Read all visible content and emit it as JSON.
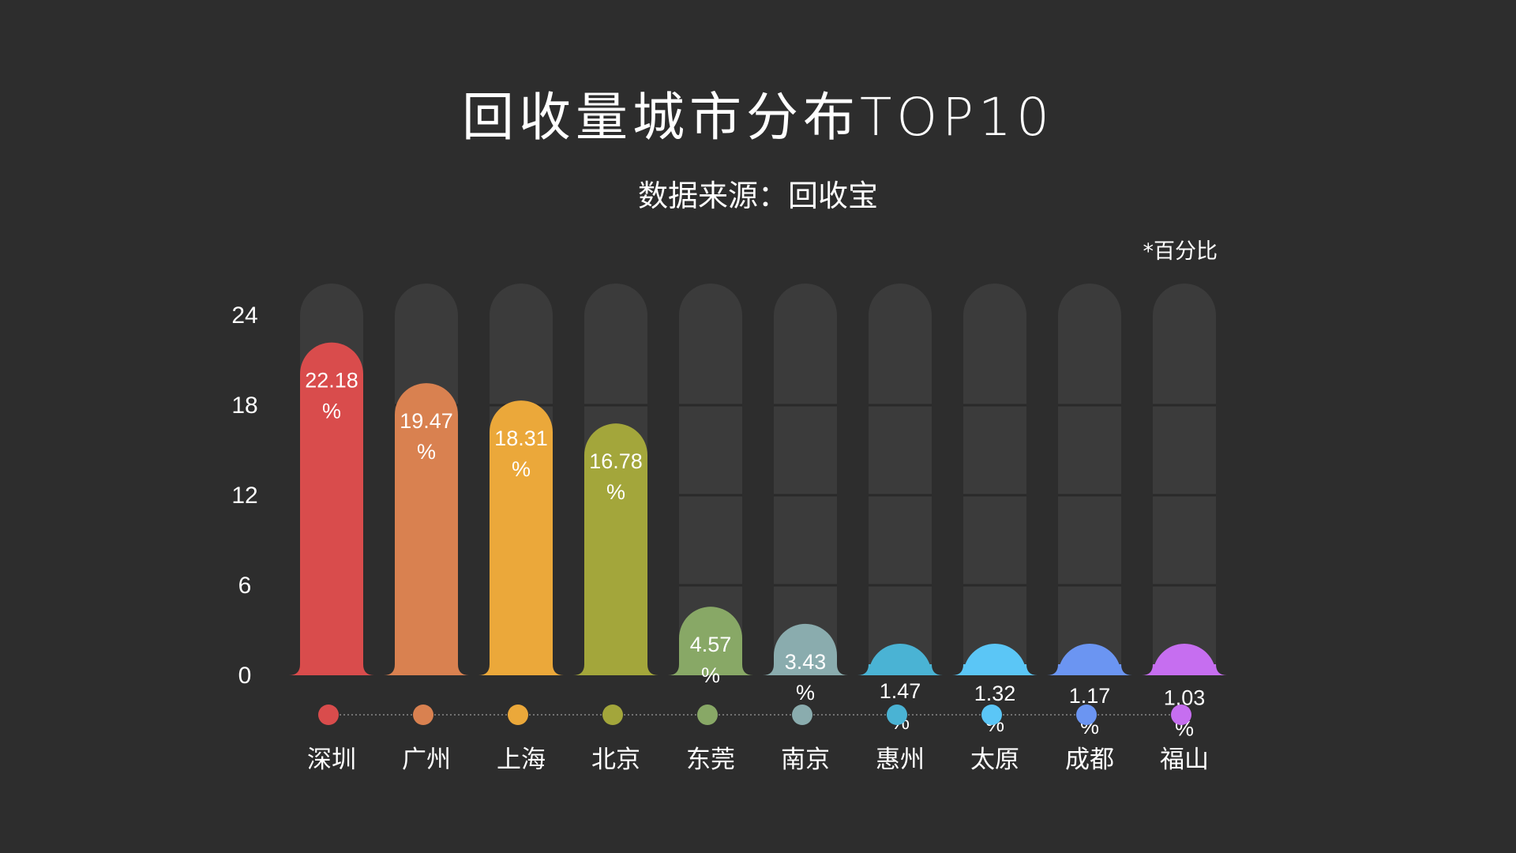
{
  "title": "回收量城市分布TOP10",
  "subtitle": "数据来源：回收宝",
  "unit_note": "*百分比",
  "colors": {
    "background": "#2d2d2d",
    "track": "#3b3b3b",
    "track_divider": "#2a2a2a",
    "text": "#ffffff"
  },
  "chart_data": {
    "type": "bar",
    "title": "回收量城市分布TOP10",
    "subtitle": "数据来源：回收宝",
    "xlabel": "",
    "ylabel": "",
    "ylim": [
      0,
      24
    ],
    "yticks": [
      0,
      6,
      12,
      18,
      24
    ],
    "value_suffix": "%",
    "categories": [
      "深圳",
      "广州",
      "上海",
      "北京",
      "东莞",
      "南京",
      "惠州",
      "太原",
      "成都",
      "福山"
    ],
    "values": [
      22.18,
      19.47,
      18.31,
      16.78,
      4.57,
      3.43,
      1.47,
      1.32,
      1.17,
      1.03
    ],
    "value_labels": [
      "22.18",
      "19.47",
      "18.31",
      "16.78",
      "4.57",
      "3.43",
      "1.47",
      "1.32",
      "1.17",
      "1.03"
    ],
    "bar_colors": [
      "#d94c4c",
      "#d98150",
      "#eba83a",
      "#a3a63b",
      "#88a866",
      "#8aacae",
      "#4ab3d4",
      "#5bc6f6",
      "#6b95f2",
      "#c66ef0"
    ],
    "grid": false
  }
}
